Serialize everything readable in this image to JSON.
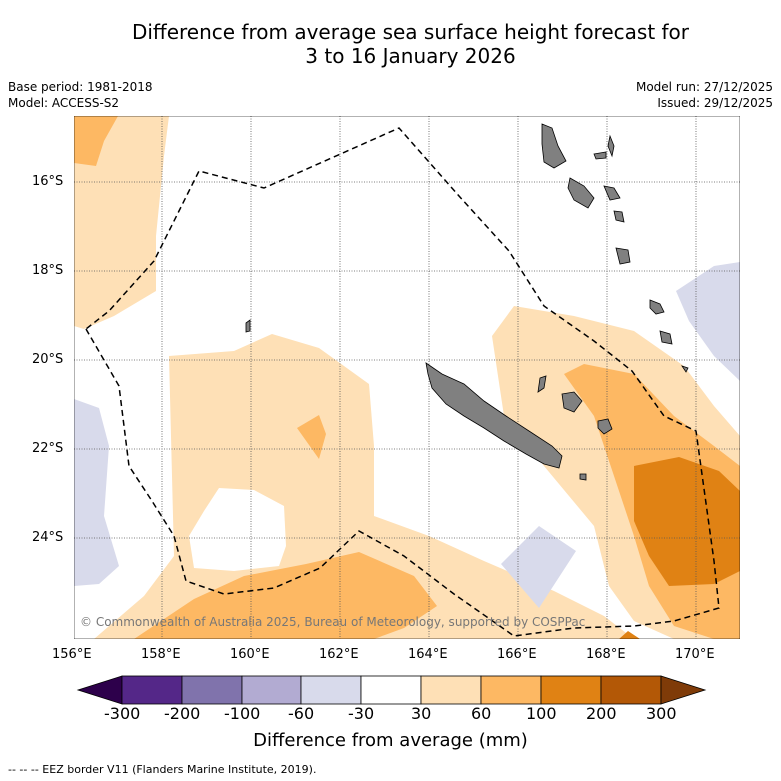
{
  "title_line1": "Difference from average sea surface height forecast for",
  "title_line2": "3 to 16 January 2026",
  "meta": {
    "base_period": "Base period: 1981-2018",
    "model": "Model: ACCESS-S2",
    "model_run": "Model run: 27/12/2025",
    "issued": "Issued: 29/12/2025"
  },
  "map": {
    "lon_ticks": [
      "156°E",
      "158°E",
      "160°E",
      "162°E",
      "164°E",
      "166°E",
      "168°E",
      "170°E"
    ],
    "lat_ticks": [
      "16°S",
      "18°S",
      "20°S",
      "22°S",
      "24°S"
    ],
    "copyright": "© Commonwealth of Australia 2025, Bureau of Meteorology, supported by COSPPac"
  },
  "colorbar": {
    "ticks": [
      "-300",
      "-200",
      "-100",
      "-60",
      "-30",
      "30",
      "60",
      "100",
      "200",
      "300"
    ],
    "colors": [
      "#2d004b",
      "#542788",
      "#8073ac",
      "#b2abd2",
      "#d8daeb",
      "#ffffff",
      "#fee0b6",
      "#fdb863",
      "#e08214",
      "#b35806",
      "#7f3b08"
    ],
    "label": "Difference from average (mm)"
  },
  "legend_note": "--  --  -- EEZ border V11 (Flanders Marine Institute, 2019)."
}
